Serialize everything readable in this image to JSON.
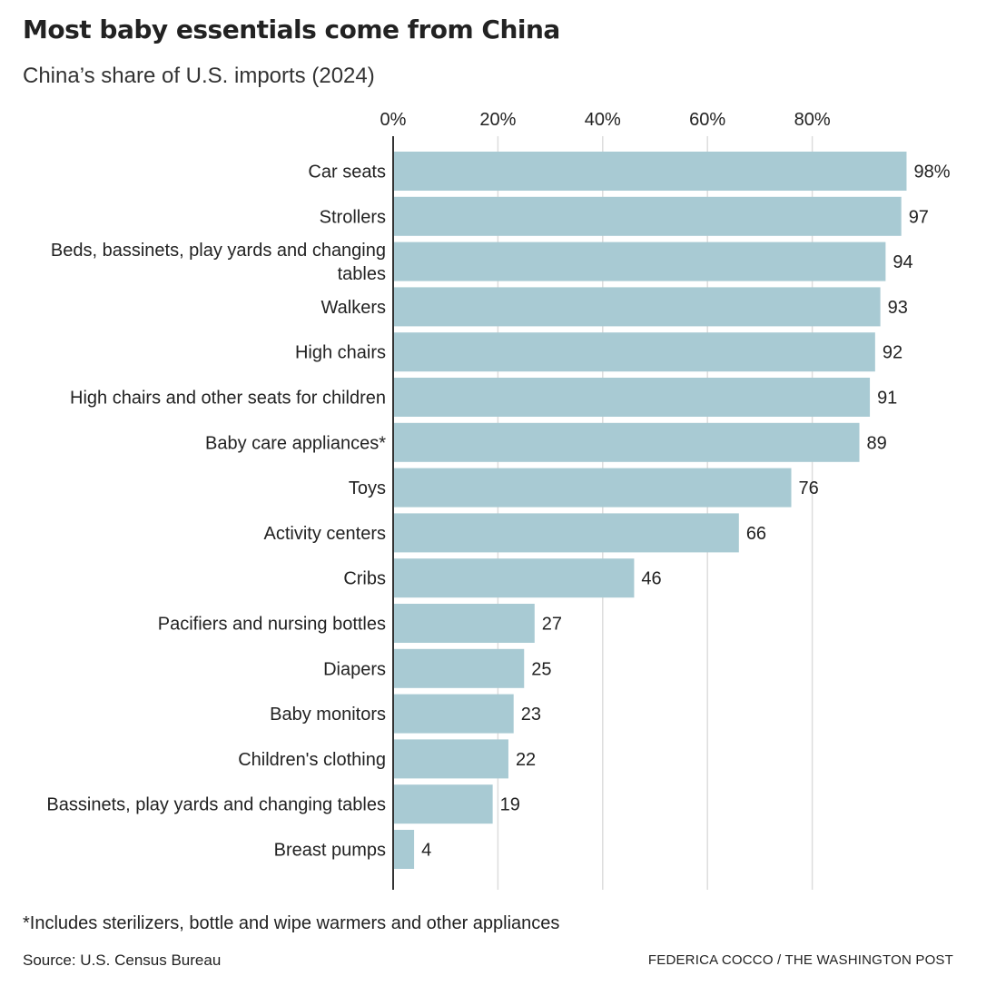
{
  "title": "Most baby essentials come from China",
  "subtitle": "China’s share of U.S. imports (2024)",
  "footnote": "*Includes sterilizers, bottle and wipe warmers and other appliances",
  "source": "Source: U.S. Census Bureau",
  "credit": "FEDERICA COCCO / THE WASHINGTON POST",
  "colors": {
    "bar": "#a8cad3",
    "grid": "#dddddd",
    "axis": "#333333",
    "text": "#222222"
  },
  "chart_data": {
    "type": "bar",
    "orientation": "horizontal",
    "xlim": [
      0,
      100
    ],
    "x_ticks": [
      {
        "value": 0,
        "label": "0%"
      },
      {
        "value": 20,
        "label": "20%"
      },
      {
        "value": 40,
        "label": "40%"
      },
      {
        "value": 60,
        "label": "60%"
      },
      {
        "value": 80,
        "label": "80%"
      }
    ],
    "grid": true,
    "categories": [
      [
        "Car seats"
      ],
      [
        "Strollers"
      ],
      [
        "Beds, bassinets, play yards and changing",
        "tables"
      ],
      [
        "Walkers"
      ],
      [
        "High chairs"
      ],
      [
        "High chairs and other seats for children"
      ],
      [
        "Baby care appliances*"
      ],
      [
        "Toys"
      ],
      [
        "Activity centers"
      ],
      [
        "Cribs"
      ],
      [
        "Pacifiers and nursing bottles"
      ],
      [
        "Diapers"
      ],
      [
        "Baby monitors"
      ],
      [
        "Children's clothing"
      ],
      [
        "Bassinets, play yards and changing tables"
      ],
      [
        "Breast pumps"
      ]
    ],
    "values": [
      98,
      97,
      94,
      93,
      92,
      91,
      89,
      76,
      66,
      46,
      27,
      25,
      23,
      22,
      19,
      4
    ],
    "value_labels": [
      "98%",
      "97",
      "94",
      "93",
      "92",
      "91",
      "89",
      "76",
      "66",
      "46",
      "27",
      "25",
      "23",
      "22",
      "19",
      "4"
    ]
  }
}
